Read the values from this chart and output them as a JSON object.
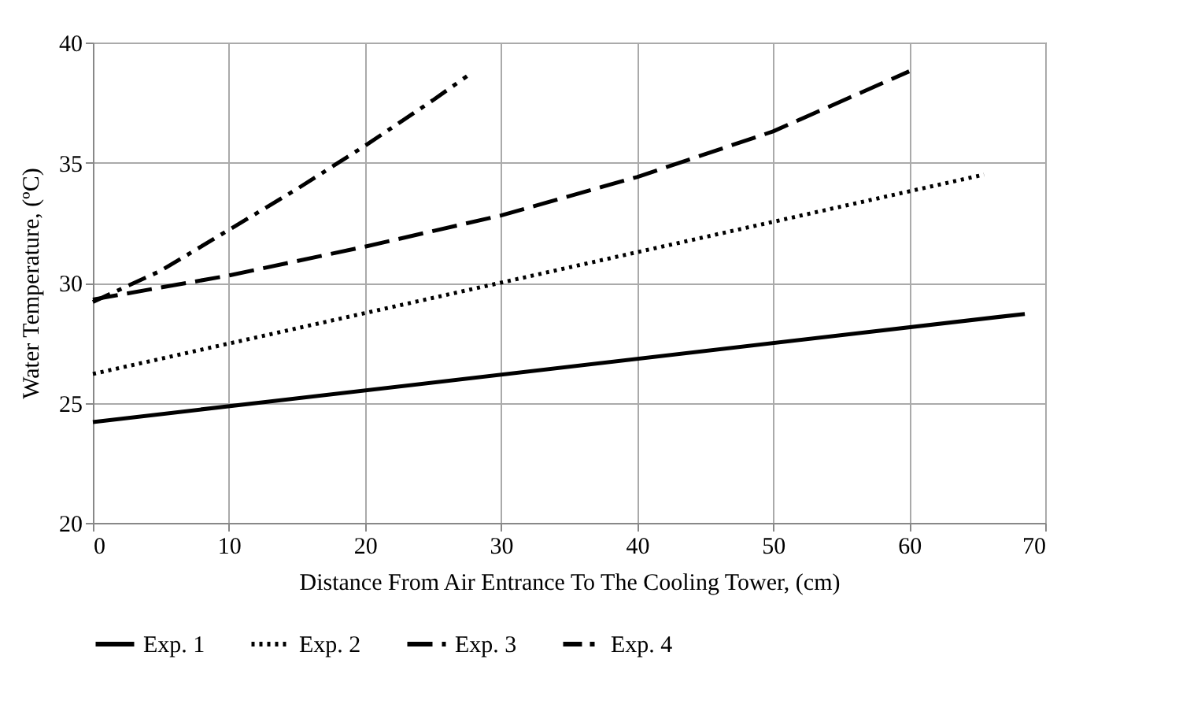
{
  "chart_data": {
    "type": "line",
    "xlabel": "Distance From Air Entrance To The Cooling Tower, (cm)",
    "ylabel": "Water Temperature, (ºC)",
    "xlim": [
      0,
      70
    ],
    "xticks": [
      0,
      10,
      20,
      30,
      40,
      50,
      60,
      70
    ],
    "ylim": [
      20,
      40
    ],
    "yticks": [
      20,
      25,
      30,
      35,
      40
    ],
    "grid": true,
    "legend": "bottom",
    "marker": "none",
    "series": [
      {
        "name": "Exp. 1",
        "color": "#000000",
        "line_style": "solid",
        "x": [
          0,
          68.5
        ],
        "values": [
          24.2,
          28.7
        ]
      },
      {
        "name": "Exp. 2",
        "color": "#000000",
        "line_style": "dotted",
        "x": [
          0,
          65.5
        ],
        "values": [
          26.2,
          34.5
        ]
      },
      {
        "name": "Exp. 3",
        "color": "#000000",
        "line_style": "dashed",
        "x": [
          0,
          10,
          20,
          30,
          40,
          50,
          60
        ],
        "values": [
          29.3,
          30.3,
          31.5,
          32.8,
          34.4,
          36.3,
          38.8
        ]
      },
      {
        "name": "Exp. 4",
        "color": "#000000",
        "line_style": "dashdot",
        "x": [
          0,
          5,
          10,
          15,
          20,
          25,
          27.5
        ],
        "values": [
          29.2,
          30.5,
          32.2,
          33.9,
          35.7,
          37.6,
          38.6
        ]
      }
    ]
  }
}
